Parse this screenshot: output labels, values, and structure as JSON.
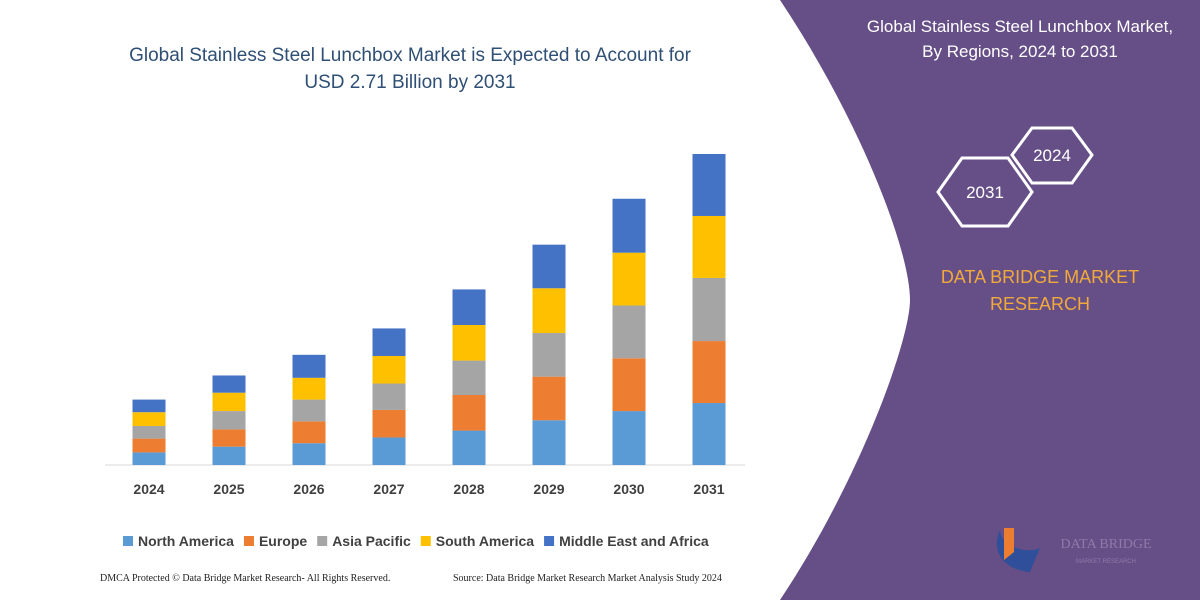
{
  "chart_data": {
    "type": "stacked-bar",
    "title": "Global Stainless Steel Lunchbox Market is Expected to Account for USD 2.71 Billion by 2031",
    "categories": [
      "2024",
      "2025",
      "2026",
      "2027",
      "2028",
      "2029",
      "2030",
      "2031"
    ],
    "series": [
      {
        "name": "North America",
        "color": "#5b9bd5",
        "values": [
          0.11,
          0.16,
          0.19,
          0.24,
          0.3,
          0.39,
          0.47,
          0.54
        ]
      },
      {
        "name": "Europe",
        "color": "#ed7d31",
        "values": [
          0.12,
          0.15,
          0.19,
          0.24,
          0.31,
          0.38,
          0.46,
          0.54
        ]
      },
      {
        "name": "Asia Pacific",
        "color": "#a5a5a5",
        "values": [
          0.11,
          0.16,
          0.19,
          0.23,
          0.3,
          0.38,
          0.46,
          0.55
        ]
      },
      {
        "name": "South America",
        "color": "#ffc000",
        "values": [
          0.12,
          0.16,
          0.19,
          0.24,
          0.31,
          0.39,
          0.46,
          0.54
        ]
      },
      {
        "name": "Middle East and Africa",
        "color": "#4472c4",
        "values": [
          0.11,
          0.15,
          0.2,
          0.24,
          0.31,
          0.38,
          0.47,
          0.54
        ]
      }
    ]
  },
  "panel": {
    "title": "Global Stainless Steel Lunchbox Market, By Regions, 2024 to 2031",
    "hex_start": "2024",
    "hex_end": "2031",
    "brand": "DATA BRIDGE MARKET RESEARCH",
    "logo_text": "DATA BRIDGE",
    "logo_subtext": "MARKET RESEARCH"
  },
  "footer": {
    "left": "DMCA Protected © Data Bridge Market Research- All Rights Reserved.",
    "right": "Source: Data Bridge Market Research Market Analysis Study 2024"
  }
}
